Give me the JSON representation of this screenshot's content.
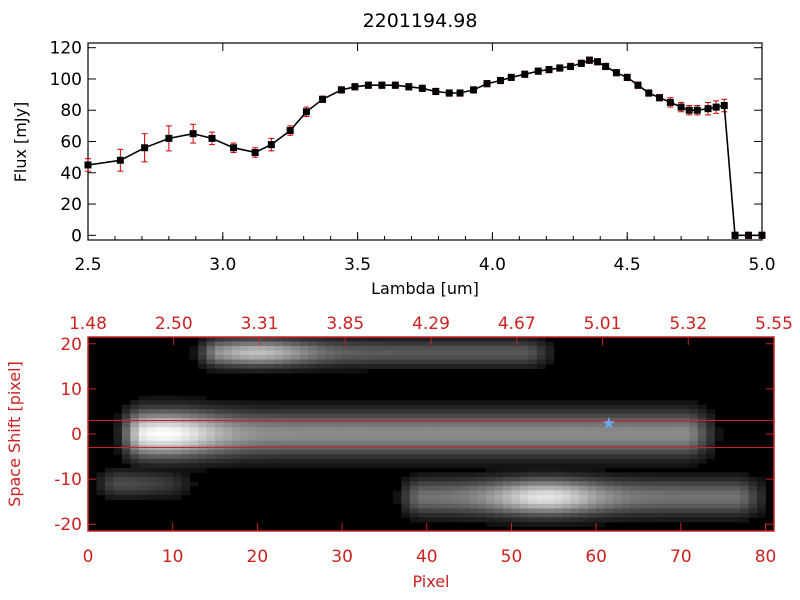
{
  "title": "2201194.98",
  "chart_data": [
    {
      "type": "line",
      "title": "2201194.98",
      "xlabel": "Lambda [um]",
      "ylabel": "Flux [mJy]",
      "xlim": [
        2.5,
        5.0
      ],
      "ylim": [
        -3,
        123
      ],
      "xticks": [
        "2.5",
        "3.0",
        "3.5",
        "4.0",
        "4.5",
        "5.0"
      ],
      "yticks": [
        "0",
        "20",
        "40",
        "60",
        "80",
        "100",
        "120"
      ],
      "line_color": "#000000",
      "marker_color": "#000000",
      "errorbar_color": "#cc0000",
      "series": [
        {
          "x": [
            2.5,
            2.62,
            2.71,
            2.8,
            2.89,
            2.96,
            3.04,
            3.12,
            3.18,
            3.25,
            3.31,
            3.37,
            3.44,
            3.49,
            3.54,
            3.59,
            3.64,
            3.69,
            3.74,
            3.79,
            3.84,
            3.88,
            3.93,
            3.98,
            4.03,
            4.07,
            4.12,
            4.17,
            4.21,
            4.25,
            4.29,
            4.33,
            4.36,
            4.39,
            4.42,
            4.46,
            4.5,
            4.54,
            4.58,
            4.62,
            4.66,
            4.7,
            4.73,
            4.76,
            4.8,
            4.83,
            4.86,
            4.9,
            4.95,
            5.0
          ],
          "y": [
            45,
            48,
            56,
            62,
            65,
            62,
            56,
            53,
            58,
            67,
            79,
            87,
            93,
            95,
            96,
            96,
            96,
            95,
            94,
            92,
            91,
            91,
            93,
            97,
            99,
            101,
            103,
            105,
            106,
            107,
            108,
            110,
            112,
            111,
            108,
            104,
            101,
            96,
            91,
            88,
            85,
            82,
            80,
            80,
            81,
            82,
            83,
            0,
            0,
            0
          ],
          "err": [
            4,
            7,
            9,
            8,
            6,
            4,
            3,
            3,
            4,
            3,
            3,
            2,
            2,
            2,
            2,
            2,
            2,
            2,
            2,
            2,
            2,
            2,
            2,
            2,
            2,
            2,
            2,
            2,
            2,
            2,
            2,
            2,
            2,
            2,
            2,
            2,
            2,
            2,
            2,
            2,
            3,
            3,
            3,
            3,
            4,
            4,
            4,
            2,
            2,
            2
          ]
        }
      ]
    },
    {
      "type": "heatmap",
      "xlabel": "Pixel",
      "ylabel": "Space Shift [pixel]",
      "xlim": [
        0,
        81
      ],
      "ylim": [
        -21.5,
        21.5
      ],
      "xticks": [
        "0",
        "10",
        "20",
        "30",
        "40",
        "50",
        "60",
        "70",
        "80"
      ],
      "yticks": [
        "-20",
        "-10",
        "0",
        "10",
        "20"
      ],
      "top_axis_ticks": [
        "1.48",
        "2.50",
        "3.31",
        "3.85",
        "4.29",
        "4.67",
        "5.01",
        "5.32",
        "5.55"
      ],
      "axis_color": "#cc2222",
      "extraction_window": [
        -3,
        3
      ],
      "star_marker": {
        "x": 61.5,
        "y": 2.5,
        "color": "#66aaff"
      },
      "traces": [
        {
          "label": "main",
          "x_start": 3,
          "x_end": 75,
          "center": 0,
          "width": 5,
          "peak_x": 9,
          "peak_level": 1.0,
          "tail_level": 0.55
        },
        {
          "label": "upper",
          "x_start": 12,
          "x_end": 56,
          "center": 18,
          "width": 3,
          "peak_x": 20,
          "peak_level": 0.75,
          "tail_level": 0.35
        },
        {
          "label": "lower",
          "x_start": 36,
          "x_end": 81,
          "center": -14,
          "width": 4,
          "peak_x": 54,
          "peak_level": 0.9,
          "tail_level": 0.45
        },
        {
          "label": "faint",
          "x_start": 0,
          "x_end": 14,
          "center": -11,
          "width": 3,
          "peak_x": 4,
          "peak_level": 0.3,
          "tail_level": 0.15
        }
      ]
    }
  ]
}
